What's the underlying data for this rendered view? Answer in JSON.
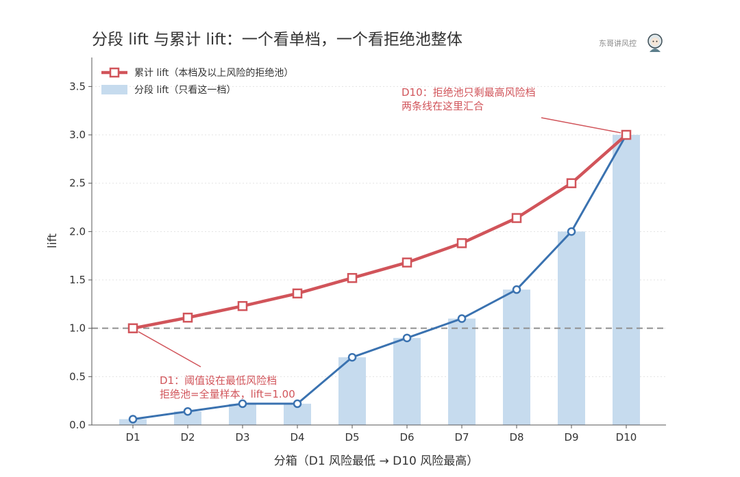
{
  "title": "分段 lift 与累计 lift：一个看单档，一个看拒绝池整体",
  "watermark": "东哥讲风控",
  "chart_data": {
    "type": "bar",
    "categories": [
      "D1",
      "D2",
      "D3",
      "D4",
      "D5",
      "D6",
      "D7",
      "D8",
      "D9",
      "D10"
    ],
    "series": [
      {
        "name": "分段 lift（只看这一档）",
        "kind": "bar",
        "color": "#c6dbee",
        "values": [
          0.06,
          0.14,
          0.22,
          0.22,
          0.7,
          0.9,
          1.1,
          1.4,
          2.0,
          3.0
        ]
      },
      {
        "name": "",
        "kind": "line-circle",
        "color": "#3a72b0",
        "values": [
          0.06,
          0.14,
          0.22,
          0.22,
          0.7,
          0.9,
          1.1,
          1.4,
          2.0,
          3.0
        ]
      },
      {
        "name": "累计 lift（本档及以上风险的拒绝池）",
        "kind": "line-square",
        "color": "#d1545a",
        "values": [
          1.0,
          1.11,
          1.23,
          1.36,
          1.52,
          1.68,
          1.88,
          2.14,
          2.5,
          3.0
        ]
      }
    ],
    "xlabel": "分箱（D1 风险最低 → D10 风险最高）",
    "ylabel": "lift",
    "ylim": [
      0,
      3.8
    ],
    "yticks": [
      "0.0",
      "0.5",
      "1.0",
      "1.5",
      "2.0",
      "2.5",
      "3.0",
      "3.5"
    ],
    "reference_line": 1.0,
    "grid": "horizontal",
    "legend_position": "top-left",
    "annotations": [
      {
        "lines": [
          "D10：拒绝池只剩最高风险档",
          "两条线在这里汇合"
        ],
        "target_index": 9,
        "color": "#d1545a"
      },
      {
        "lines": [
          "D1：阈值设在最低风险档",
          "拒绝池=全量样本，lift=1.00"
        ],
        "target_index": 0,
        "color": "#d1545a"
      }
    ]
  }
}
